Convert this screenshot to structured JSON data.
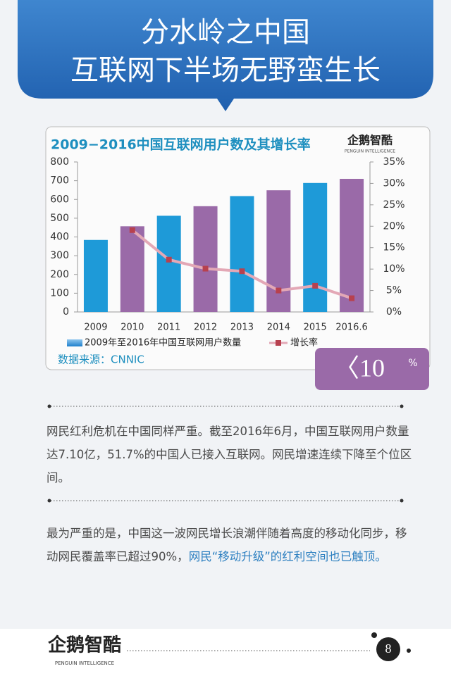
{
  "header": {
    "title_lines": [
      "分水岭之中国",
      "互联网下半场无野蛮生长"
    ]
  },
  "chart_data": {
    "type": "bar",
    "title": "2009−2016中国互联网用户数及其增长率",
    "logo": "企鹅智酷",
    "logo_sub": "PENGUIN INTELLIGENCE",
    "source": "数据来源：CNNIC",
    "categories": [
      "2009",
      "2010",
      "2011",
      "2012",
      "2013",
      "2014",
      "2015",
      "2016.6"
    ],
    "series": [
      {
        "name": "2009年至2016年中国互联网用户数量",
        "type": "bar",
        "color": "#1e9ad8",
        "bar_colors": [
          "#1e9ad8",
          "#9a6aa8",
          "#1e9ad8",
          "#9a6aa8",
          "#1e9ad8",
          "#9a6aa8",
          "#1e9ad8",
          "#9a6aa8"
        ],
        "values": [
          384,
          457,
          513,
          564,
          618,
          649,
          688,
          710
        ]
      },
      {
        "name": "增长率",
        "type": "line",
        "axis": "y2",
        "color": "#b7414f",
        "line_color": "#e3a8b6",
        "values": [
          null,
          19.1,
          12.2,
          10.1,
          9.5,
          5.0,
          6.1,
          3.2
        ]
      }
    ],
    "ylim": [
      0,
      800
    ],
    "yticks": [
      0,
      100,
      200,
      300,
      400,
      500,
      600,
      700,
      800
    ],
    "y2lim": [
      0,
      35
    ],
    "y2ticks": [
      {
        "value": 0,
        "label": "0%"
      },
      {
        "value": 5,
        "label": "5%"
      },
      {
        "value": 10,
        "label": "10%"
      },
      {
        "value": 15,
        "label": "15%"
      },
      {
        "value": 20,
        "label": "20%"
      },
      {
        "value": 25,
        "label": "25%"
      },
      {
        "value": 30,
        "label": "30%"
      },
      {
        "value": 35,
        "label": "35%"
      }
    ],
    "grid": false
  },
  "badge": {
    "text": "〈10",
    "unit": "%"
  },
  "paragraph_1": "网民红利危机在中国同样严重。截至2016年6月，中国互联网用户数量达7.10亿，51.7%的中国人已接入互联网。网民增速连续下降至个位区间。",
  "paragraph_2": {
    "plain": "最为严重的是，中国这一波网民增长浪潮伴随着高度的移动化同步，移动网民覆盖率已超过90%，",
    "highlight": "网民“移动升级”的红利空间也已触顶。"
  },
  "footer": {
    "logo": "企鹅智酷",
    "logo_sub": "PENGUIN INTELLIGENCE",
    "page": "8"
  }
}
